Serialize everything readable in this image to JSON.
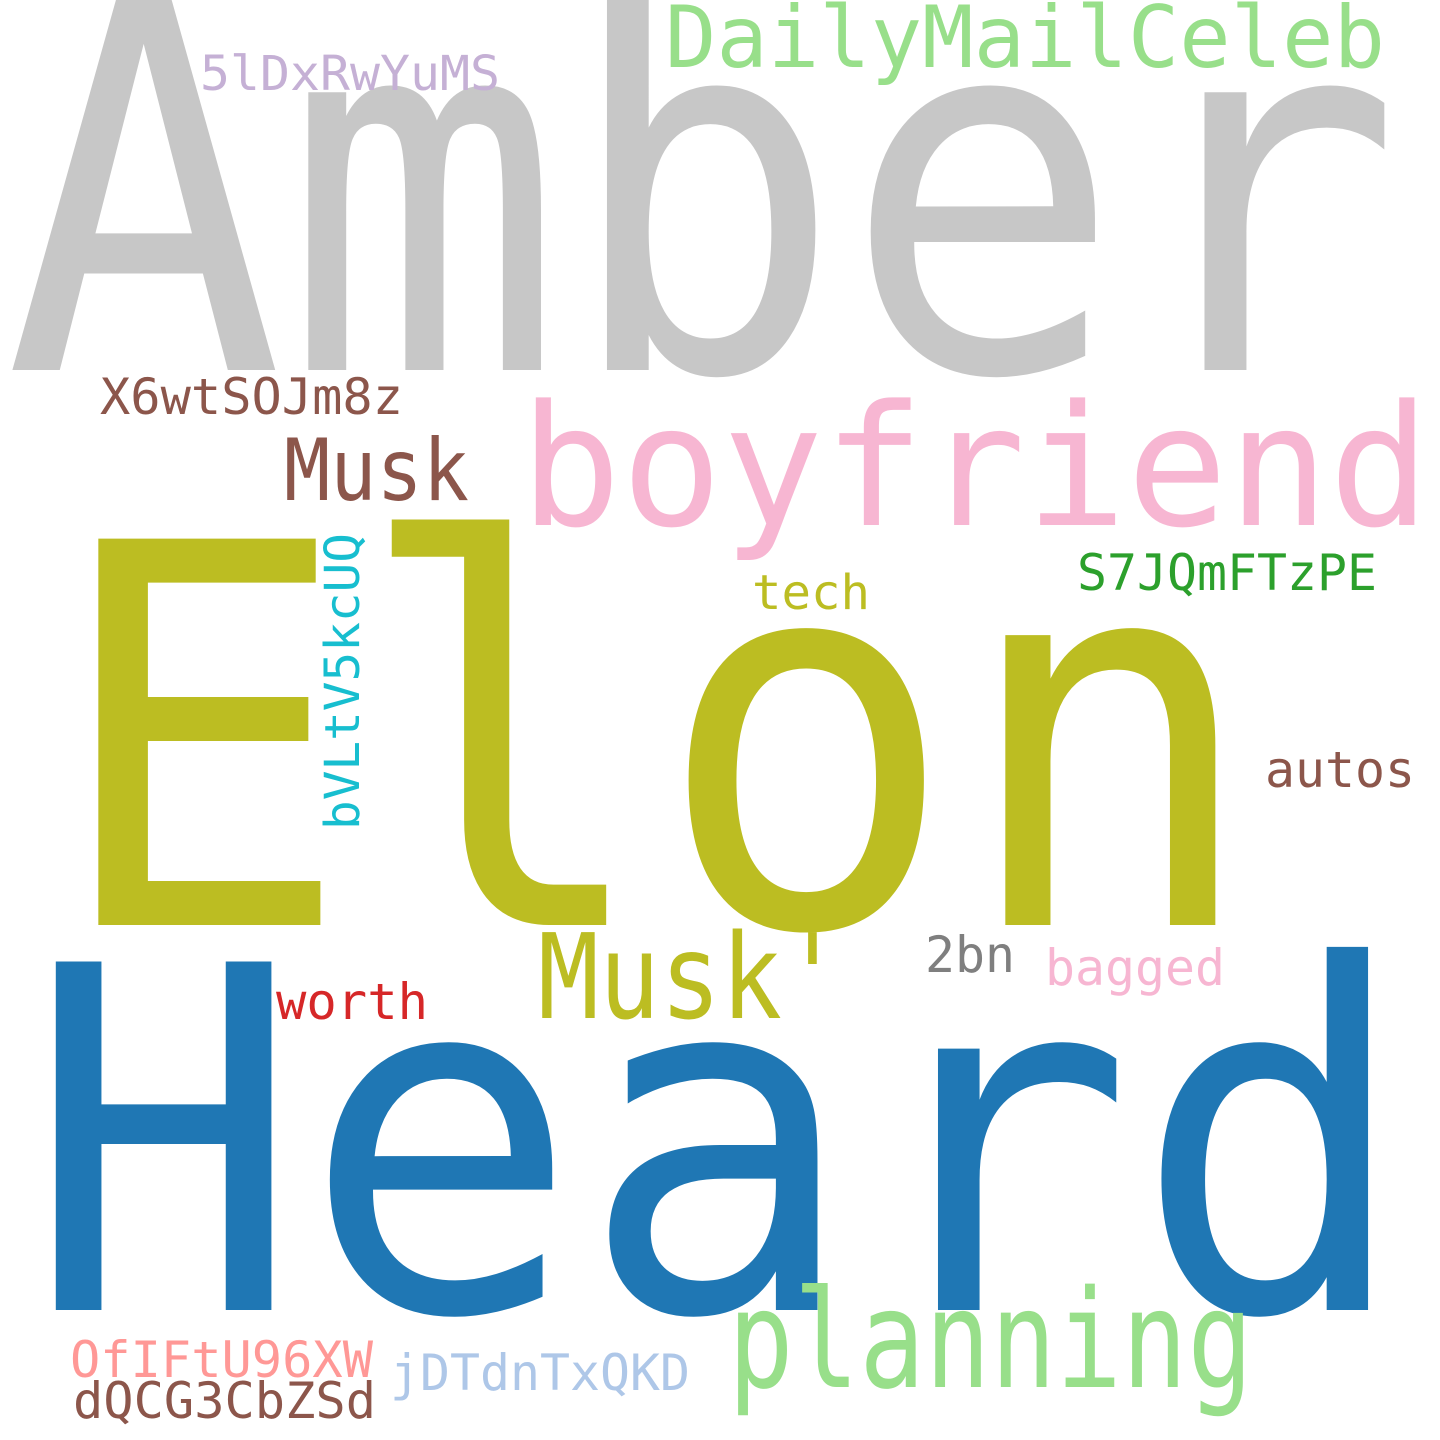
{
  "words": {
    "amber": {
      "text": "Amber",
      "color": "#c7c7c7"
    },
    "elon": {
      "text": "Elon",
      "color": "#bcbd22"
    },
    "heard": {
      "text": "Heard",
      "color": "#1f77b4"
    },
    "boyfriend": {
      "text": "boyfriend",
      "color": "#f7b6d2"
    },
    "daily_mail_celeb": {
      "text": "DailyMailCeleb",
      "color": "#98df8a"
    },
    "planning": {
      "text": "planning",
      "color": "#98df8a"
    },
    "musk_apostrophe": {
      "text": "Musk'",
      "color": "#bcbd22"
    },
    "musk": {
      "text": "Musk",
      "color": "#8c564b"
    },
    "code_5ld": {
      "text": "5lDxRwYuMS",
      "color": "#c5b0d5"
    },
    "code_x6w": {
      "text": "X6wtSOJm8z",
      "color": "#8c564b"
    },
    "code_s7j": {
      "text": "S7JQmFTzPE",
      "color": "#2ca02c"
    },
    "tech": {
      "text": "tech",
      "color": "#bcbd22"
    },
    "code_bvl": {
      "text": "bVLtV5kcUQ",
      "color": "#17becf"
    },
    "autos": {
      "text": "autos",
      "color": "#8c564b"
    },
    "two_bn": {
      "text": "2bn",
      "color": "#7f7f7f"
    },
    "bagged": {
      "text": "bagged",
      "color": "#f7b6d2"
    },
    "worth": {
      "text": "worth",
      "color": "#d62728"
    },
    "code_ofi": {
      "text": "OfIFtU96XW",
      "color": "#ff9896"
    },
    "code_jdt": {
      "text": "jDTdnTxQKD",
      "color": "#aec7e8"
    },
    "code_dqc": {
      "text": "dQCG3CbZSd",
      "color": "#8c564b"
    }
  }
}
